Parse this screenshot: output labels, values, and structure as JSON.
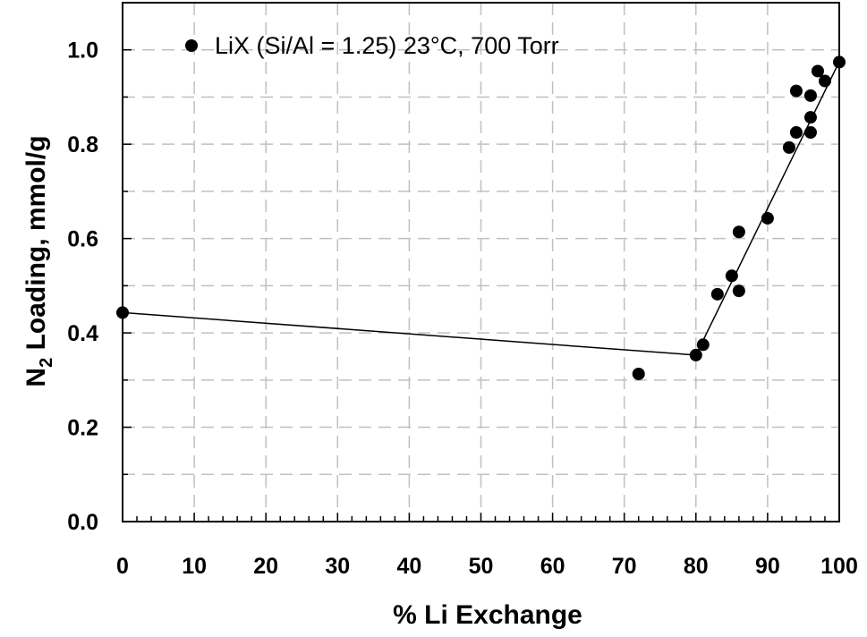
{
  "chart_data": {
    "type": "scatter",
    "xlabel": "% Li Exchange",
    "ylabel": {
      "main": "N",
      "sub": "2",
      "rest": " Loading, mmol/g"
    },
    "xlim": [
      0,
      100
    ],
    "ylim": [
      0,
      1.1
    ],
    "xticks": [
      0,
      10,
      20,
      30,
      40,
      50,
      60,
      70,
      80,
      90,
      100
    ],
    "yticks": [
      0.0,
      0.2,
      0.4,
      0.6,
      0.8,
      1.0
    ],
    "ytick_labels": [
      "0.0",
      "0.2",
      "0.4",
      "0.6",
      "0.8",
      "1.0"
    ],
    "grid": true,
    "legend_position": "top-left",
    "series": [
      {
        "name": "LiX (Si/Al = 1.25) 23°C, 700 Torr",
        "color": "#000000",
        "marker": "circle",
        "points": [
          [
            0,
            0.443
          ],
          [
            72,
            0.313
          ],
          [
            80,
            0.353
          ],
          [
            81,
            0.375
          ],
          [
            83,
            0.482
          ],
          [
            85,
            0.521
          ],
          [
            86,
            0.489
          ],
          [
            86,
            0.614
          ],
          [
            90,
            0.643
          ],
          [
            93,
            0.793
          ],
          [
            94,
            0.913
          ],
          [
            94,
            0.825
          ],
          [
            96,
            0.903
          ],
          [
            96,
            0.857
          ],
          [
            96,
            0.825
          ],
          [
            97,
            0.955
          ],
          [
            98,
            0.934
          ],
          [
            100,
            0.974
          ]
        ]
      }
    ],
    "fit_line": [
      [
        0,
        0.443
      ],
      [
        80,
        0.353
      ],
      [
        100,
        0.975
      ]
    ]
  }
}
